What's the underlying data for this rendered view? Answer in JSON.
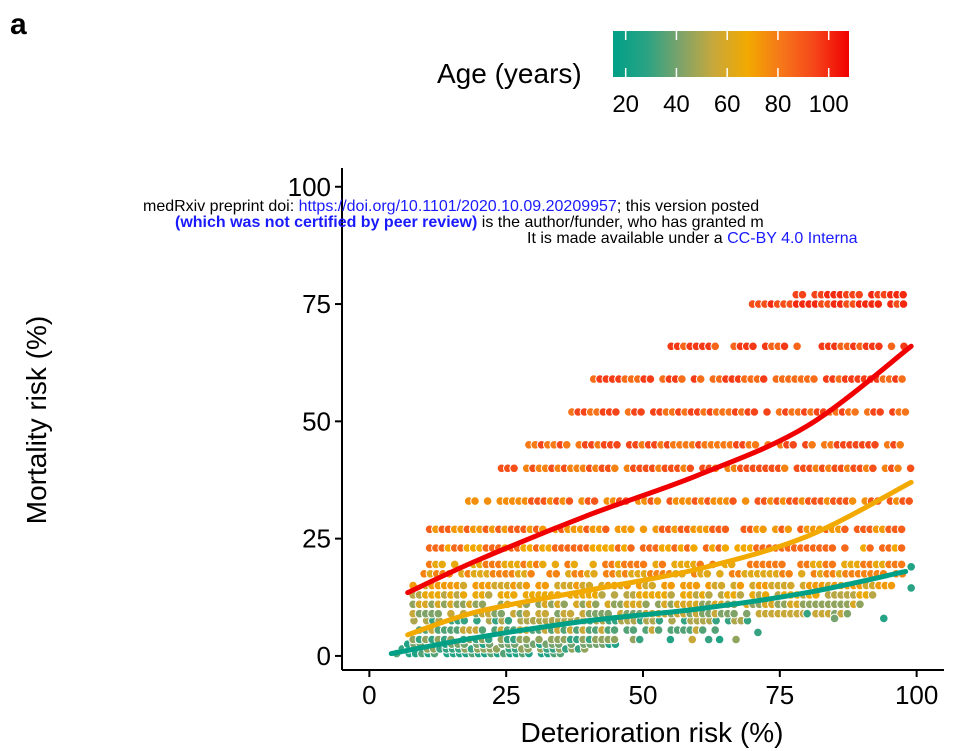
{
  "panel_label": "a",
  "preprint_notice": {
    "line1_prefix": "medRxiv preprint doi: ",
    "line1_link": "https://doi.org/10.1101/2020.10.09.20209957",
    "line1_suffix": "; this version posted",
    "line2_bold": "(which was not certified by peer review)",
    "line2_rest": " is the author/funder, who has granted m",
    "line3_prefix": "It is made available under a ",
    "line3_link": "CC-BY 4.0 Interna"
  },
  "chart_data": {
    "type": "scatter",
    "xlabel": "Deterioration risk (%)",
    "ylabel": "Mortality risk (%)",
    "xlim": [
      -5,
      105
    ],
    "ylim": [
      -3,
      104
    ],
    "xticks": [
      0,
      25,
      50,
      75,
      100
    ],
    "yticks": [
      0,
      25,
      50,
      75,
      100
    ],
    "grid": false,
    "legend": {
      "title": "Age (years)",
      "position": "top",
      "ticks": [
        20,
        40,
        60,
        80,
        100
      ],
      "range": [
        15,
        108
      ],
      "colors": [
        "#00a087",
        "#2aa384",
        "#7ea36a",
        "#c8a83a",
        "#f2a900",
        "#f6761a",
        "#f5451a",
        "#f00000"
      ]
    },
    "point_style": {
      "edge_color": "#ffffff"
    },
    "point_bands": [
      {
        "y": 0.5,
        "x_range": [
          5,
          35
        ],
        "age": 25,
        "alt_age": 35
      },
      {
        "y": 1.5,
        "x_range": [
          6,
          40
        ],
        "age": 30,
        "alt_age": 45
      },
      {
        "y": 2.5,
        "x_range": [
          7,
          46
        ],
        "age": 40,
        "alt_age": 25
      },
      {
        "y": 3.5,
        "x_range": [
          8,
          50
        ],
        "age": 45,
        "alt_age": 30
      },
      {
        "y": 5.5,
        "x_range": [
          8,
          64
        ],
        "age": 35,
        "alt_age": 55
      },
      {
        "y": 7.5,
        "x_range": [
          7,
          70
        ],
        "age": 50,
        "alt_age": 30
      },
      {
        "y": 9,
        "x_range": [
          8,
          88
        ],
        "age": 55,
        "alt_age": 42
      },
      {
        "y": 11,
        "x_range": [
          8,
          90
        ],
        "age": 60,
        "alt_age": 45
      },
      {
        "y": 13,
        "x_range": [
          8,
          92
        ],
        "age": 66,
        "alt_age": 52
      },
      {
        "y": 15,
        "x_range": [
          8,
          97
        ],
        "age": 72,
        "alt_age": 58
      },
      {
        "y": 17.5,
        "x_range": [
          10,
          98
        ],
        "age": 78,
        "alt_age": 62
      },
      {
        "y": 19.5,
        "x_range": [
          11,
          98
        ],
        "age": 80,
        "alt_age": 65
      },
      {
        "y": 23,
        "x_range": [
          11,
          98
        ],
        "age": 85,
        "alt_age": 68
      },
      {
        "y": 27,
        "x_range": [
          11,
          98
        ],
        "age": 88,
        "alt_age": 72
      },
      {
        "y": 33,
        "x_range": [
          17,
          99
        ],
        "age": 90,
        "alt_age": 75
      },
      {
        "y": 40,
        "x_range": [
          23,
          99
        ],
        "age": 92,
        "alt_age": 78
      },
      {
        "y": 45,
        "x_range": [
          28,
          98
        ],
        "age": 94,
        "alt_age": 80
      },
      {
        "y": 52,
        "x_range": [
          37,
          99
        ],
        "age": 95,
        "alt_age": 82
      },
      {
        "y": 59,
        "x_range": [
          41,
          98
        ],
        "age": 96,
        "alt_age": 84
      },
      {
        "y": 66,
        "x_range": [
          54,
          99
        ],
        "age": 97,
        "alt_age": 86
      },
      {
        "y": 75,
        "x_range": [
          70,
          98
        ],
        "age": 100,
        "alt_age": 92
      },
      {
        "y": 77,
        "x_range": [
          78,
          98
        ],
        "age": 100,
        "alt_age": 95
      }
    ],
    "scattered_points": [
      {
        "x": 99,
        "y": 19,
        "age": 25
      },
      {
        "x": 99,
        "y": 14.5,
        "age": 28
      },
      {
        "x": 94,
        "y": 8,
        "age": 26
      },
      {
        "x": 85,
        "y": 8,
        "age": 40
      },
      {
        "x": 80,
        "y": 9,
        "age": 30
      },
      {
        "x": 71,
        "y": 5,
        "age": 30
      },
      {
        "x": 67,
        "y": 3.5,
        "age": 45
      },
      {
        "x": 64,
        "y": 3.5,
        "age": 25
      },
      {
        "x": 62,
        "y": 3.5,
        "age": 30
      },
      {
        "x": 59,
        "y": 3.5,
        "age": 55
      },
      {
        "x": 55,
        "y": 3.5,
        "age": 26
      }
    ],
    "series": [
      {
        "age": 25,
        "color": "#00a087",
        "points": [
          [
            4,
            0.5
          ],
          [
            20,
            4
          ],
          [
            40,
            7.5
          ],
          [
            60,
            10
          ],
          [
            80,
            13.5
          ],
          [
            98,
            18
          ]
        ]
      },
      {
        "age": 65,
        "color": "#f2a900",
        "points": [
          [
            7,
            4.5
          ],
          [
            20,
            9.5
          ],
          [
            40,
            14
          ],
          [
            60,
            18.5
          ],
          [
            80,
            25.5
          ],
          [
            99,
            37
          ]
        ]
      },
      {
        "age": 95,
        "color": "#f00000",
        "points": [
          [
            7,
            13.5
          ],
          [
            20,
            20.5
          ],
          [
            40,
            30
          ],
          [
            60,
            38.5
          ],
          [
            80,
            49
          ],
          [
            99,
            66
          ]
        ]
      }
    ]
  }
}
